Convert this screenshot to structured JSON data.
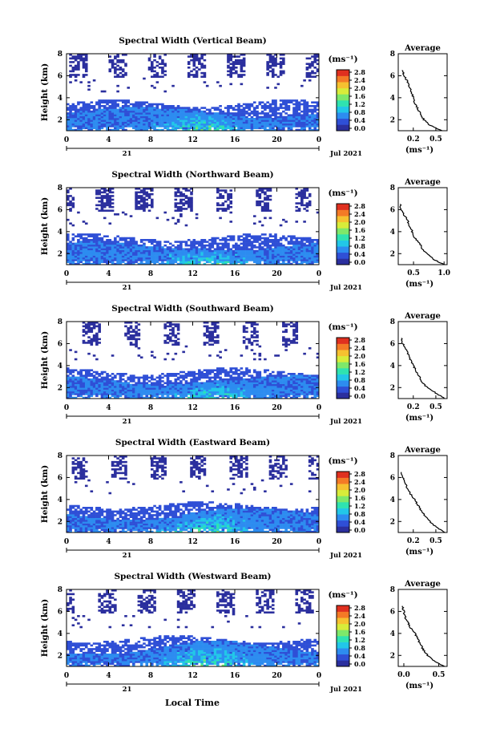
{
  "panels": [
    {
      "title": "Spectral Width (Vertical Beam)",
      "cb_labels": [
        "2.8",
        "2.4",
        "2.0",
        "1.6",
        "1.2",
        "0.8",
        "0.4",
        "0.0"
      ],
      "avg_xticks": [
        "0.2",
        "0.5"
      ],
      "avg_xrange": [
        0.0,
        0.65
      ],
      "avg_profile": [
        [
          0.58,
          1.0
        ],
        [
          0.42,
          1.5
        ],
        [
          0.34,
          2.0
        ],
        [
          0.3,
          2.5
        ],
        [
          0.26,
          3.0
        ],
        [
          0.22,
          3.5
        ],
        [
          0.2,
          4.0
        ],
        [
          0.18,
          4.5
        ],
        [
          0.14,
          5.0
        ],
        [
          0.12,
          5.5
        ],
        [
          0.08,
          6.0
        ],
        [
          0.05,
          6.5
        ]
      ]
    },
    {
      "title": "Spectral Width (Northward Beam)",
      "cb_labels": [
        "2.8",
        "2.4",
        "2.0",
        "1.6",
        "1.2",
        "0.8",
        "0.4",
        "0.0"
      ],
      "avg_xticks": [
        "0.5",
        "1.0"
      ],
      "avg_xrange": [
        0.25,
        1.05
      ],
      "avg_profile": [
        [
          1.0,
          1.0
        ],
        [
          0.82,
          1.5
        ],
        [
          0.72,
          2.0
        ],
        [
          0.64,
          2.5
        ],
        [
          0.6,
          3.0
        ],
        [
          0.5,
          3.5
        ],
        [
          0.48,
          4.0
        ],
        [
          0.44,
          4.5
        ],
        [
          0.4,
          5.0
        ],
        [
          0.35,
          5.5
        ],
        [
          0.3,
          6.0
        ],
        [
          0.28,
          6.5
        ]
      ]
    },
    {
      "title": "Spectral Width (Southward Beam)",
      "cb_labels": [
        "2.8",
        "2.4",
        "2.0",
        "1.6",
        "1.2",
        "0.8",
        "0.4",
        "0.0"
      ],
      "avg_xticks": [
        "0.2",
        "0.5"
      ],
      "avg_xrange": [
        0.0,
        0.65
      ],
      "avg_profile": [
        [
          0.62,
          1.0
        ],
        [
          0.5,
          1.5
        ],
        [
          0.38,
          2.0
        ],
        [
          0.32,
          2.5
        ],
        [
          0.28,
          3.0
        ],
        [
          0.24,
          3.5
        ],
        [
          0.2,
          4.0
        ],
        [
          0.16,
          4.5
        ],
        [
          0.13,
          5.0
        ],
        [
          0.1,
          5.5
        ],
        [
          0.06,
          6.0
        ],
        [
          0.04,
          6.5
        ]
      ]
    },
    {
      "title": "Spectral Width (Eastward Beam)",
      "cb_labels": [
        "2.8",
        "2.4",
        "2.0",
        "1.6",
        "1.2",
        "0.8",
        "0.4",
        "0.0"
      ],
      "avg_xticks": [
        "0.2",
        "0.5"
      ],
      "avg_xrange": [
        0.0,
        0.65
      ],
      "avg_profile": [
        [
          0.62,
          1.0
        ],
        [
          0.5,
          1.5
        ],
        [
          0.42,
          2.0
        ],
        [
          0.36,
          2.5
        ],
        [
          0.3,
          3.0
        ],
        [
          0.26,
          3.5
        ],
        [
          0.22,
          4.0
        ],
        [
          0.16,
          4.5
        ],
        [
          0.12,
          5.0
        ],
        [
          0.09,
          5.5
        ],
        [
          0.06,
          6.0
        ],
        [
          0.04,
          6.5
        ]
      ]
    },
    {
      "title": "Spectral Width (Westward Beam)",
      "cb_labels": [
        "2.8",
        "2.4",
        "2.0",
        "1.6",
        "1.2",
        "0.8",
        "0.4",
        "0.0"
      ],
      "avg_xticks": [
        "0.0",
        "0.5"
      ],
      "avg_xrange": [
        -0.08,
        0.62
      ],
      "avg_profile": [
        [
          0.58,
          1.0
        ],
        [
          0.44,
          1.5
        ],
        [
          0.34,
          2.0
        ],
        [
          0.28,
          2.5
        ],
        [
          0.24,
          3.0
        ],
        [
          0.2,
          3.5
        ],
        [
          0.16,
          4.0
        ],
        [
          0.1,
          4.5
        ],
        [
          0.06,
          5.0
        ],
        [
          0.02,
          5.5
        ],
        [
          0.0,
          6.0
        ],
        [
          -0.02,
          6.5
        ]
      ]
    }
  ],
  "ylabel": "Height (km)",
  "ylim": [
    1,
    8
  ],
  "y_ticks": [
    "2",
    "4",
    "6",
    "8"
  ],
  "x_ticks": [
    "0",
    "4",
    "8",
    "12",
    "16",
    "20",
    "0"
  ],
  "xlim_hours": [
    0,
    24
  ],
  "day_label": "21",
  "month_label": "Jul 2021",
  "unit_label": "(ms⁻¹)",
  "average_title": "Average",
  "average_xlabel": "(ms⁻¹)",
  "xlabel_bottom": "Local Time",
  "colorbar_colors": [
    "#2b2f9e",
    "#2f4fd6",
    "#2d8cf0",
    "#22c7e8",
    "#2fe3b0",
    "#7ee86a",
    "#d8ec3a",
    "#f6c130",
    "#f47a26",
    "#e0301f"
  ],
  "chart_data": {
    "type": "heatmap",
    "x": "Local Time (h)",
    "y": "Height (km)",
    "xlim": [
      0,
      24
    ],
    "ylim": [
      1,
      8
    ],
    "zlim": [
      0.0,
      2.8
    ],
    "colorbar": "jet"
  }
}
